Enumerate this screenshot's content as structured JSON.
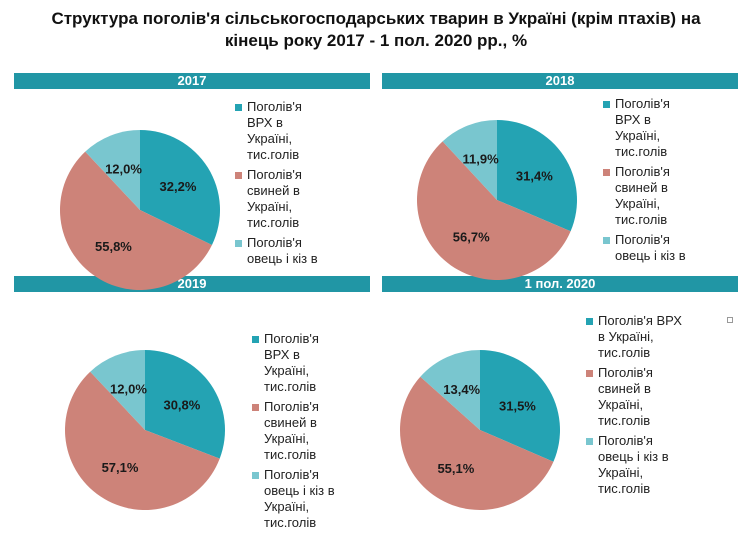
{
  "title_line1": "Структура поголів'я сільськогосподарських тварин в Україні (крім птахів) на",
  "title_line2": "кінець року 2017 - 1 пол. 2020 рр., %",
  "colors": {
    "bar": "#2196a5",
    "series": [
      "#24a3b3",
      "#cd8379",
      "#79c6cf"
    ]
  },
  "chart_data": [
    {
      "type": "pie",
      "title": "2017",
      "categories": [
        "Поголів'я ВРХ в Україні, тис.голів",
        "Поголів'я свиней в Україні, тис.голів",
        "Поголів'я овець і кіз в Україні, тис.голів"
      ],
      "values": [
        32.2,
        55.8,
        12.0
      ],
      "labels": [
        "32,2%",
        "55,8%",
        "12,0%"
      ],
      "legend_lines": [
        [
          "Поголів'я",
          "ВРХ в",
          "Україні,",
          "тис.голів"
        ],
        [
          "Поголів'я",
          "свиней в",
          "Україні,",
          "тис.голів"
        ],
        [
          "Поголів'я",
          "овець і кіз в"
        ]
      ]
    },
    {
      "type": "pie",
      "title": "2018",
      "categories": [
        "Поголів'я ВРХ в Україні, тис.голів",
        "Поголів'я свиней в Україні, тис.голів",
        "Поголів'я овець і кіз в Україні, тис.голів"
      ],
      "values": [
        31.4,
        56.7,
        11.9
      ],
      "labels": [
        "31,4%",
        "56,7%",
        "11,9%"
      ],
      "legend_lines": [
        [
          "Поголів'я",
          "ВРХ в",
          "Україні,",
          "тис.голів"
        ],
        [
          "Поголів'я",
          "свиней в",
          "Україні,",
          "тис.голів"
        ],
        [
          "Поголів'я",
          "овець і кіз в"
        ]
      ]
    },
    {
      "type": "pie",
      "title": "2019",
      "categories": [
        "Поголів'я ВРХ в Україні, тис.голів",
        "Поголів'я свиней в Україні, тис.голів",
        "Поголів'я овець і кіз в Україні, тис.голів"
      ],
      "values": [
        30.8,
        57.1,
        12.0
      ],
      "labels": [
        "30,8%",
        "57,1%",
        "12,0%"
      ],
      "legend_lines": [
        [
          "Поголів'я",
          "ВРХ в",
          "Україні,",
          "тис.голів"
        ],
        [
          "Поголів'я",
          "свиней в",
          "Україні,",
          "тис.голів"
        ],
        [
          "Поголів'я",
          "овець і кіз в",
          "Україні,",
          "тис.голів"
        ]
      ]
    },
    {
      "type": "pie",
      "title": "1 пол. 2020",
      "categories": [
        "Поголів'я ВРХ в Україні, тис.голів",
        "Поголів'я свиней в Україні, тис.голів",
        "Поголів'я овець і кіз в Україні, тис.голів"
      ],
      "values": [
        31.5,
        55.1,
        13.4
      ],
      "labels": [
        "31,5%",
        "55,1%",
        "13,4%"
      ],
      "legend_lines": [
        [
          "Поголів'я ВРХ",
          "в Україні,",
          "тис.голів"
        ],
        [
          "Поголів'я",
          "свиней в",
          "Україні,",
          "тис.голів"
        ],
        [
          "Поголів'я",
          "овець і кіз в",
          "Україні,",
          "тис.голів"
        ]
      ]
    }
  ]
}
